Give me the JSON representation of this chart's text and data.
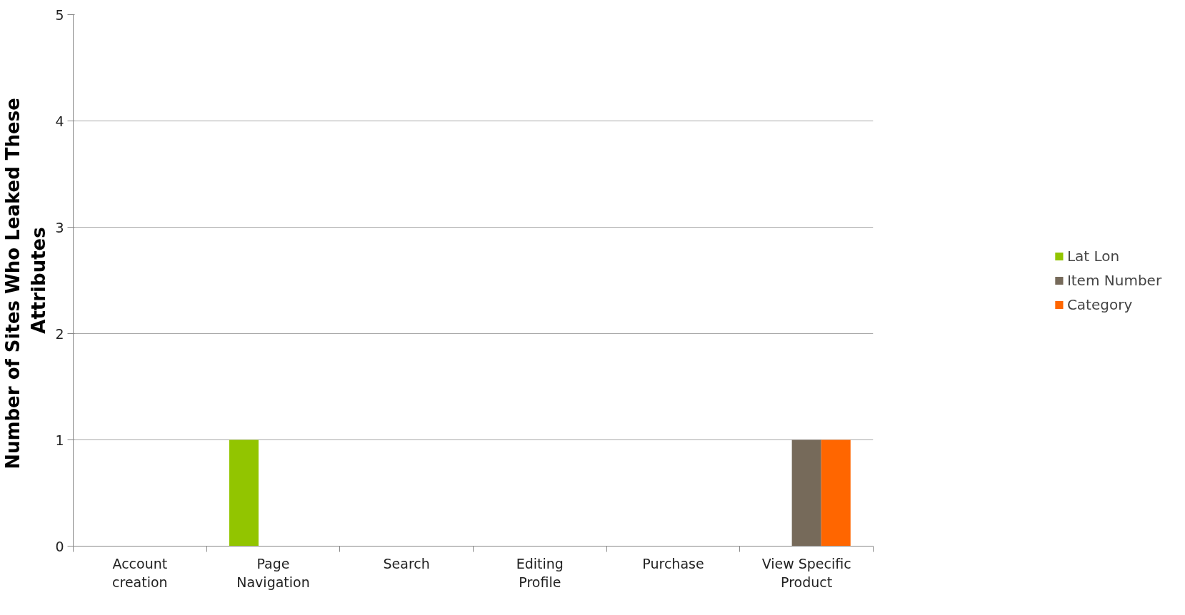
{
  "chart_data": {
    "type": "bar",
    "ylabel": "Number of Sites  Who Leaked These Attributes",
    "categories": [
      "Account creation",
      "Page Navigation",
      "Search",
      "Editing Profile",
      "Purchase",
      "View Specific Product"
    ],
    "series": [
      {
        "name": "Lat Lon",
        "color": "#92c500",
        "values": [
          0,
          1,
          0,
          0,
          0,
          0
        ]
      },
      {
        "name": "Item Number",
        "color": "#766a5a",
        "values": [
          0,
          0,
          0,
          0,
          0,
          1
        ]
      },
      {
        "name": "Category",
        "color": "#ff6600",
        "values": [
          0,
          0,
          0,
          0,
          0,
          1
        ]
      }
    ],
    "ylim": [
      0,
      5
    ],
    "yticks": [
      0,
      1,
      2,
      3,
      4,
      5
    ],
    "grid": "y",
    "legend": "right"
  }
}
